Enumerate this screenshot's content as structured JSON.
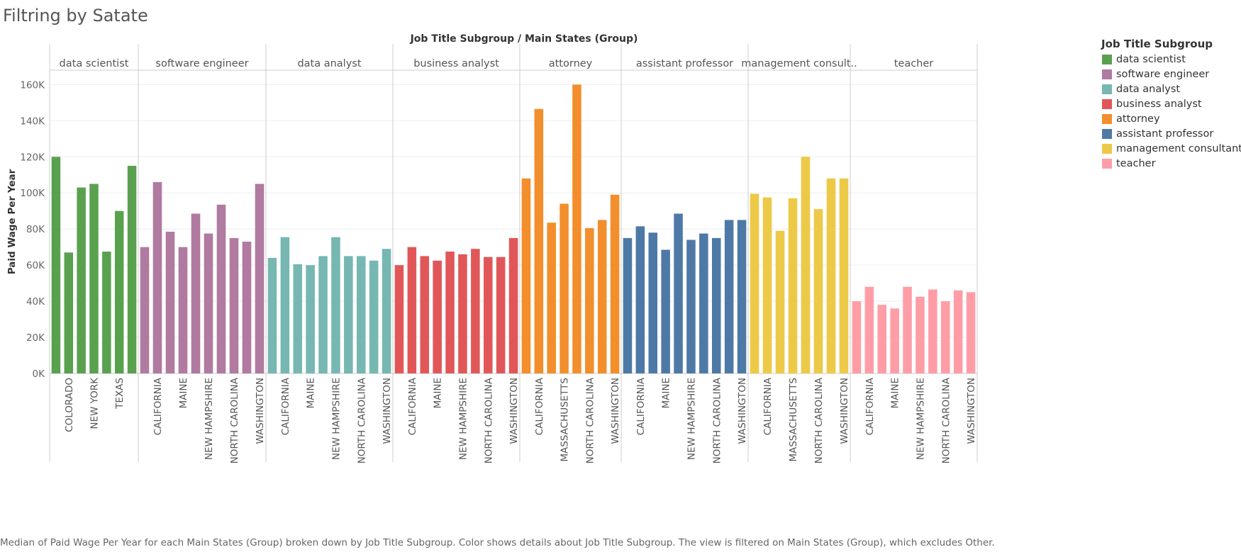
{
  "title": "Filtring by Satate",
  "caption": "Median of Paid Wage Per Year for each Main States (Group) broken down by Job Title Subgroup.  Color shows details about Job Title Subgroup. The view is filtered on Main States (Group), which excludes Other.",
  "chart_data": {
    "type": "bar",
    "column_header": "Job Title Subgroup  /  Main States (Group)",
    "ylabel": "Paid Wage Per Year",
    "ylim": [
      0,
      168000
    ],
    "yticks": [
      0,
      20000,
      40000,
      60000,
      80000,
      100000,
      120000,
      140000,
      160000
    ],
    "ytick_labels": [
      "0K",
      "20K",
      "40K",
      "60K",
      "80K",
      "100K",
      "120K",
      "140K",
      "160K"
    ],
    "grid": true,
    "legend": {
      "title": "Job Title Subgroup",
      "position": "right",
      "items": [
        {
          "label": "data scientist",
          "color": "#59a14f"
        },
        {
          "label": "software engineer",
          "color": "#b07aa1"
        },
        {
          "label": "data analyst",
          "color": "#76b7b2"
        },
        {
          "label": "business analyst",
          "color": "#e15759"
        },
        {
          "label": "attorney",
          "color": "#f28e2b"
        },
        {
          "label": "assistant professor",
          "color": "#4e79a7"
        },
        {
          "label": "management consultant",
          "color": "#edc948"
        },
        {
          "label": "teacher",
          "color": "#ff9da7"
        }
      ]
    },
    "panels": [
      {
        "header": "data scientist",
        "color": "#59a14f",
        "values": [
          120000,
          67000,
          103000,
          105000,
          67500,
          90000,
          115000
        ],
        "tick_labels": [
          "",
          "COLORADO",
          "",
          "NEW YORK",
          "",
          "TEXAS",
          ""
        ]
      },
      {
        "header": "software engineer",
        "color": "#b07aa1",
        "values": [
          70000,
          106000,
          78500,
          70000,
          88500,
          77500,
          93500,
          75000,
          73000,
          105000
        ],
        "tick_labels": [
          "",
          "CALIFORNIA",
          "",
          "MAINE",
          "",
          "NEW HAMPSHIRE",
          "",
          "NORTH CAROLINA",
          "",
          "WASHINGTON"
        ]
      },
      {
        "header": "data analyst",
        "color": "#76b7b2",
        "values": [
          64000,
          75500,
          60500,
          60000,
          65000,
          75500,
          65000,
          65000,
          62500,
          69000
        ],
        "tick_labels": [
          "",
          "CALIFORNIA",
          "",
          "MAINE",
          "",
          "NEW HAMPSHIRE",
          "",
          "NORTH CAROLINA",
          "",
          "WASHINGTON"
        ]
      },
      {
        "header": "business analyst",
        "color": "#e15759",
        "values": [
          60000,
          70000,
          65000,
          62500,
          67500,
          66000,
          69000,
          64500,
          64500,
          75000
        ],
        "tick_labels": [
          "",
          "CALIFORNIA",
          "",
          "MAINE",
          "",
          "NEW HAMPSHIRE",
          "",
          "NORTH CAROLINA",
          "",
          "WASHINGTON"
        ]
      },
      {
        "header": "attorney",
        "color": "#f28e2b",
        "values": [
          108000,
          146500,
          83500,
          94000,
          160000,
          80500,
          85000,
          99000
        ],
        "tick_labels": [
          "",
          "CALIFORNIA",
          "",
          "MASSACHUSETTS",
          "",
          "NORTH CAROLINA",
          "",
          "WASHINGTON"
        ]
      },
      {
        "header": "assistant professor",
        "color": "#4e79a7",
        "values": [
          75000,
          81500,
          78000,
          68500,
          88500,
          74000,
          77500,
          75000,
          85000,
          85000
        ],
        "tick_labels": [
          "",
          "CALIFORNIA",
          "",
          "MAINE",
          "",
          "NEW HAMPSHIRE",
          "",
          "NORTH CAROLINA",
          "",
          "WASHINGTON"
        ]
      },
      {
        "header": "management consult..",
        "color": "#edc948",
        "values": [
          99500,
          97500,
          79000,
          97000,
          120000,
          91000,
          108000,
          108000
        ],
        "tick_labels": [
          "",
          "CALIFORNIA",
          "",
          "MASSACHUSETTS",
          "",
          "NORTH CAROLINA",
          "",
          "WASHINGTON"
        ]
      },
      {
        "header": "teacher",
        "color": "#ff9da7",
        "values": [
          40000,
          48000,
          38000,
          36000,
          48000,
          42500,
          46500,
          40000,
          46000,
          45000
        ],
        "tick_labels": [
          "",
          "CALIFORNIA",
          "",
          "MAINE",
          "",
          "NEW HAMPSHIRE",
          "",
          "NORTH CAROLINA",
          "",
          "WASHINGTON"
        ]
      }
    ]
  }
}
